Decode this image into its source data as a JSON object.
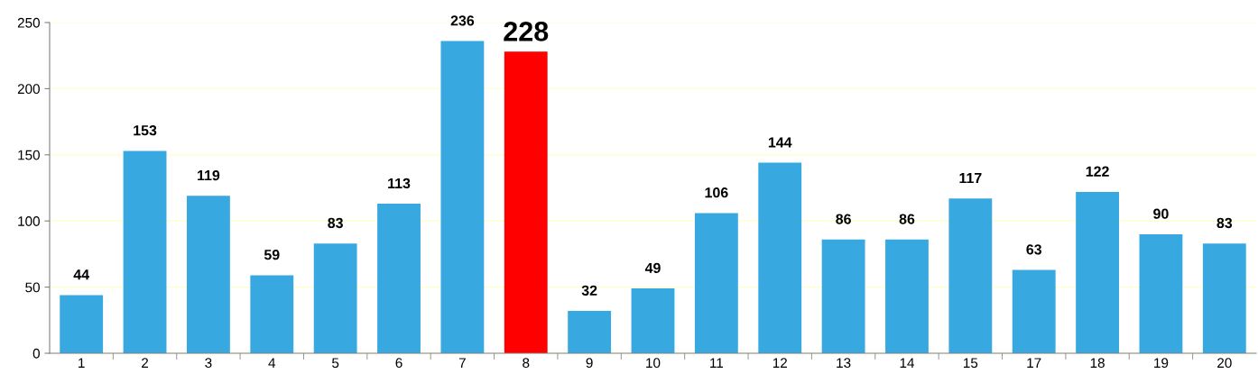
{
  "chart_data": {
    "type": "bar",
    "categories": [
      "1",
      "2",
      "3",
      "4",
      "5",
      "6",
      "7",
      "8",
      "9",
      "10",
      "11",
      "12",
      "13",
      "14",
      "15",
      "17",
      "18",
      "19",
      "20"
    ],
    "values": [
      44,
      153,
      119,
      59,
      83,
      113,
      236,
      228,
      32,
      49,
      106,
      144,
      86,
      86,
      117,
      63,
      122,
      90,
      83
    ],
    "colors": [
      "#38a9e0",
      "#38a9e0",
      "#38a9e0",
      "#38a9e0",
      "#38a9e0",
      "#38a9e0",
      "#38a9e0",
      "#ff0000",
      "#38a9e0",
      "#38a9e0",
      "#38a9e0",
      "#38a9e0",
      "#38a9e0",
      "#38a9e0",
      "#38a9e0",
      "#38a9e0",
      "#38a9e0",
      "#38a9e0",
      "#38a9e0"
    ],
    "ylim": [
      0,
      250
    ],
    "yticks": [
      0,
      50,
      100,
      150,
      200,
      250
    ],
    "grid": "y",
    "data_labels": true
  }
}
